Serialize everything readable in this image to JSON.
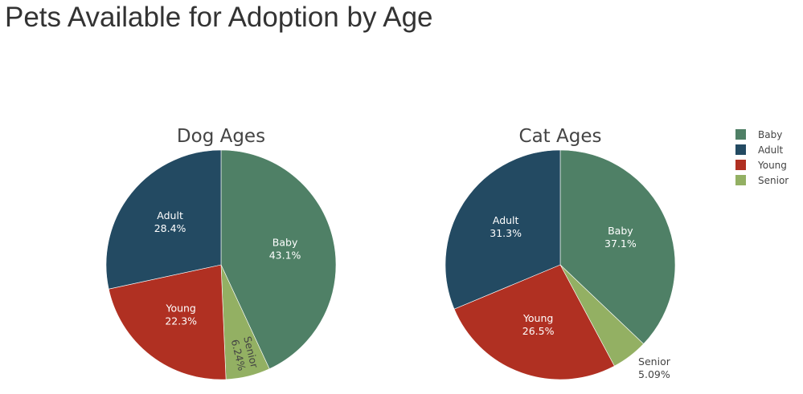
{
  "title": "Pets Available for Adoption by Age",
  "colors": {
    "Baby": "#4f8066",
    "Adult": "#234a62",
    "Young": "#b03022",
    "Senior": "#93b063"
  },
  "legend": [
    "Baby",
    "Adult",
    "Young",
    "Senior"
  ],
  "chart_data": [
    {
      "type": "pie",
      "title": "Dog Ages",
      "categories": [
        "Baby",
        "Senior",
        "Young",
        "Adult"
      ],
      "values": [
        43.1,
        6.24,
        22.3,
        28.4
      ],
      "labels": [
        "43.1%",
        "6.24%",
        "22.3%",
        "28.4%"
      ]
    },
    {
      "type": "pie",
      "title": "Cat Ages",
      "categories": [
        "Baby",
        "Senior",
        "Young",
        "Adult"
      ],
      "values": [
        37.1,
        5.09,
        26.5,
        31.3
      ],
      "labels": [
        "37.1%",
        "5.09%",
        "26.5%",
        "31.3%"
      ]
    }
  ]
}
